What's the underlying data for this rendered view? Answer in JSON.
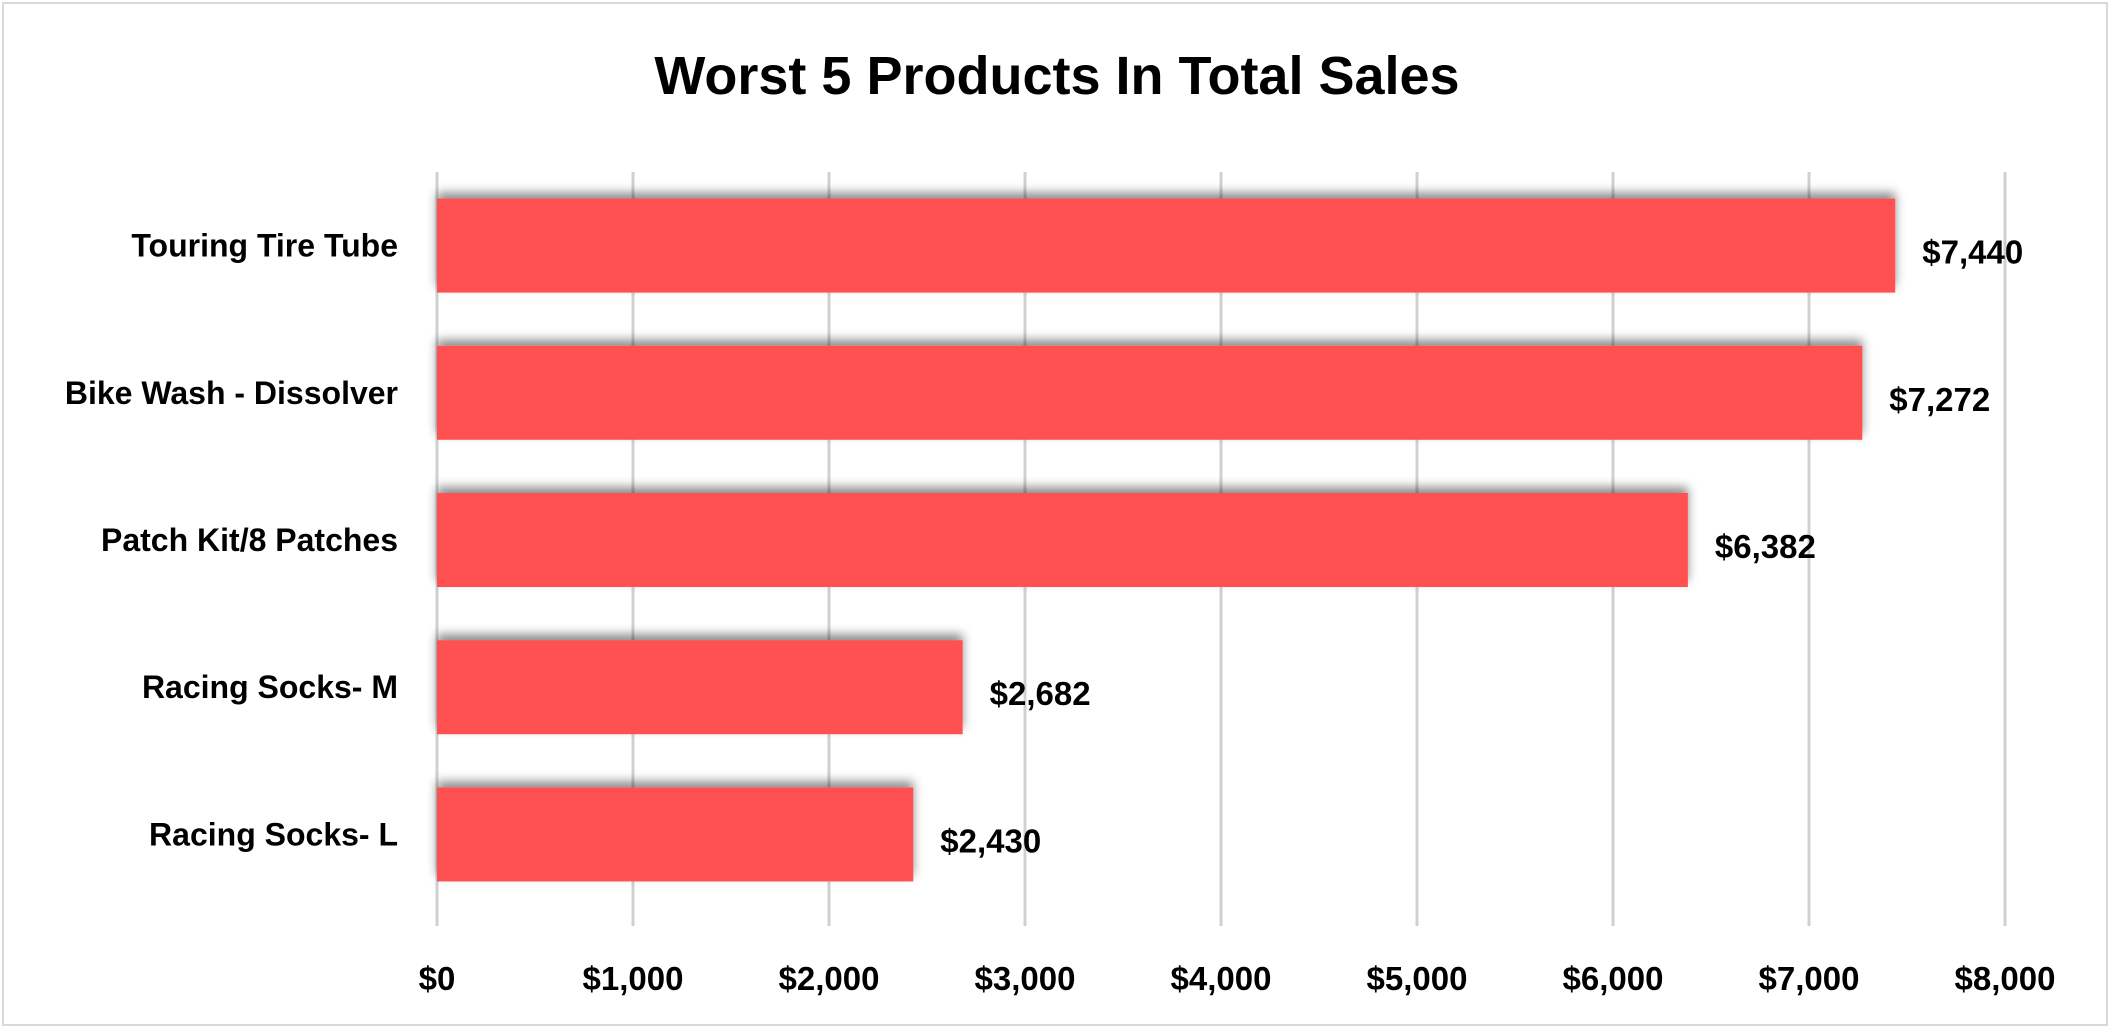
{
  "chart_data": {
    "type": "bar",
    "orientation": "horizontal",
    "title": "Worst 5 Products In Total Sales",
    "xlabel": "",
    "ylabel": "",
    "categories": [
      "Touring Tire Tube",
      "Bike Wash - Dissolver",
      "Patch Kit/8 Patches",
      "Racing Socks- M",
      "Racing Socks- L"
    ],
    "values": [
      7440,
      7272,
      6382,
      2682,
      2430
    ],
    "data_labels": [
      "$7,440",
      "$7,272",
      "$6,382",
      "$2,682",
      "$2,430"
    ],
    "xlim": [
      0,
      8000
    ],
    "x_ticks": [
      0,
      1000,
      2000,
      3000,
      4000,
      5000,
      6000,
      7000,
      8000
    ],
    "x_tick_labels": [
      "$0",
      "$1,000",
      "$2,000",
      "$3,000",
      "$4,000",
      "$5,000",
      "$6,000",
      "$7,000",
      "$8,000"
    ],
    "grid": "vertical",
    "legend": "none",
    "colors": {
      "bar": "#ff5151",
      "grid": "#d0d0d0",
      "border": "#d9d9d9",
      "text": "#000000"
    }
  }
}
